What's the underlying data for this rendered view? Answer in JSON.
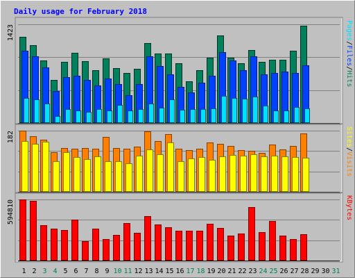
{
  "chart_data": {
    "type": "bar",
    "title": "Daily usage for February 2018",
    "days": [
      "1",
      "2",
      "3",
      "4",
      "5",
      "6",
      "7",
      "8",
      "9",
      "10",
      "11",
      "12",
      "13",
      "14",
      "15",
      "16",
      "17",
      "18",
      "19",
      "20",
      "21",
      "22",
      "23",
      "24",
      "25",
      "26",
      "27",
      "28",
      "29",
      "30",
      "31"
    ],
    "weekend_days": [
      "3",
      "4",
      "10",
      "11",
      "17",
      "18",
      "24",
      "25",
      "31"
    ],
    "panels": [
      {
        "id": "hits-files-pages",
        "max_label": "1423",
        "ylim": [
          0,
          1423
        ],
        "grid": true,
        "legend": [
          "Pages",
          "/",
          "Files",
          "/",
          "Hits"
        ],
        "series": [
          {
            "name": "Hits",
            "color": "#00805c",
            "values": [
              1240,
              1120,
              900,
              620,
              880,
              1010,
              890,
              760,
              930,
              790,
              720,
              780,
              1150,
              1000,
              1000,
              860,
              600,
              760,
              940,
              1260,
              940,
              860,
              1050,
              880,
              910,
              910,
              1040,
              1400
            ]
          },
          {
            "name": "Files",
            "color": "#0040ff",
            "values": [
              1040,
              960,
              800,
              460,
              660,
              680,
              620,
              540,
              640,
              560,
              400,
              560,
              960,
              820,
              700,
              520,
              440,
              580,
              680,
              1020,
              900,
              760,
              960,
              700,
              720,
              740,
              720,
              830
            ]
          },
          {
            "name": "Pages",
            "color": "#00e0ff",
            "values": [
              360,
              340,
              280,
              100,
              200,
              180,
              160,
              200,
              180,
              260,
              180,
              200,
              280,
              220,
              340,
              190,
              200,
              200,
              210,
              390,
              360,
              350,
              380,
              250,
              180,
              180,
              230,
              210
            ]
          }
        ]
      },
      {
        "id": "visits-sites",
        "max_label": "182",
        "ylim": [
          0,
          182
        ],
        "grid": true,
        "legend": [
          "Sites",
          "/",
          "Visits"
        ],
        "series": [
          {
            "name": "Visits",
            "color": "#ff8000",
            "values": [
              182,
              166,
              156,
              118,
              131,
              129,
              131,
              128,
              164,
              131,
              129,
              135,
              179,
              151,
              171,
              129,
              124,
              129,
              146,
              143,
              136,
              124,
              123,
              115,
              140,
              126,
              136,
              173
            ]
          },
          {
            "name": "Sites",
            "color": "#ffff00",
            "values": [
              152,
              142,
              148,
              90,
              118,
              104,
              98,
              106,
              90,
              90,
              84,
              108,
              126,
              112,
              146,
              92,
              100,
              103,
              95,
              106,
              109,
              108,
              112,
              106,
              108,
              106,
              103,
              102
            ]
          }
        ]
      },
      {
        "id": "kbytes",
        "max_label": "594810",
        "ylim": [
          0,
          594810
        ],
        "grid": true,
        "legend": [
          "KBytes"
        ],
        "series": [
          {
            "name": "KBytes",
            "color": "#ff0000",
            "values": [
              594810,
              580000,
              346000,
              310000,
              298000,
              396000,
              190000,
              310000,
              212000,
              251000,
              365000,
              269000,
              432000,
              354000,
              322000,
              290000,
              290000,
              290000,
              361000,
              316000,
              245000,
              264000,
              520000,
              276000,
              388000,
              243000,
              212000,
              254000
            ]
          }
        ]
      }
    ]
  }
}
